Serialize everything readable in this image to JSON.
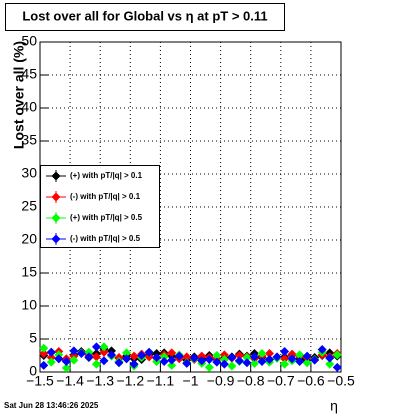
{
  "chart_data": {
    "type": "scatter",
    "title": "Lost over all for Global vs   η at pT > 0.11",
    "y_label": "Lost over all (%)",
    "x_label": "η",
    "timestamp": "Sat Jun 28 13:46:26 2025",
    "x": [
      -1.4875,
      -1.4625,
      -1.4375,
      -1.4125,
      -1.3875,
      -1.3625,
      -1.3375,
      -1.3125,
      -1.2875,
      -1.2625,
      -1.2375,
      -1.2125,
      -1.1875,
      -1.1625,
      -1.1375,
      -1.1125,
      -1.0875,
      -1.0625,
      -1.0375,
      -1.0125,
      -0.9875,
      -0.9625,
      -0.9375,
      -0.9125,
      -0.8875,
      -0.8625,
      -0.8375,
      -0.8125,
      -0.7875,
      -0.7625,
      -0.7375,
      -0.7125,
      -0.6875,
      -0.6625,
      -0.6375,
      -0.6125,
      -0.5875,
      -0.5625,
      -0.5375,
      -0.5125
    ],
    "series": [
      {
        "name": "(+) with pT/|q| > 0.1",
        "color": "#000000",
        "values": [
          2.5,
          3.0,
          2.0,
          1.8,
          2.6,
          3.1,
          2.2,
          2.8,
          3.5,
          3.2,
          2.1,
          2.4,
          2.0,
          1.9,
          2.6,
          2.8,
          2.9,
          2.4,
          2.2,
          1.8,
          2.3,
          2.0,
          2.5,
          1.9,
          2.1,
          2.3,
          2.7,
          2.4,
          2.8,
          2.2,
          1.9,
          2.1,
          2.3,
          2.6,
          2.0,
          1.8,
          2.2,
          2.5,
          2.9,
          2.4
        ]
      },
      {
        "name": "(-) with pT/|q| > 0.1",
        "color": "#ff0000",
        "values": [
          2.8,
          2.2,
          3.1,
          2.0,
          2.4,
          2.9,
          2.6,
          2.3,
          3.0,
          2.5,
          2.2,
          2.0,
          2.4,
          2.7,
          2.3,
          2.1,
          2.6,
          2.9,
          2.0,
          2.3,
          1.9,
          2.4,
          2.2,
          2.0,
          2.6,
          2.1,
          2.5,
          2.3,
          2.0,
          2.4,
          2.8,
          2.2,
          2.0,
          2.7,
          2.4,
          2.2,
          1.9,
          2.6,
          2.3,
          2.8
        ]
      },
      {
        "name": "(+) with pT/|q| > 0.5",
        "color": "#00ff00",
        "values": [
          3.6,
          1.5,
          2.6,
          0.6,
          1.8,
          2.9,
          3.0,
          1.2,
          3.8,
          2.4,
          1.6,
          2.9,
          0.9,
          2.2,
          3.0,
          1.6,
          2.3,
          1.0,
          2.6,
          1.4,
          2.0,
          1.3,
          0.7,
          2.5,
          1.9,
          0.9,
          1.6,
          2.2,
          1.3,
          2.8,
          1.5,
          2.1,
          1.2,
          1.7,
          2.6,
          1.4,
          1.9,
          3.0,
          1.2,
          2.6
        ]
      },
      {
        "name": "(-) with pT/|q| > 0.5",
        "color": "#0000ff",
        "values": [
          1.0,
          3.0,
          2.0,
          1.6,
          3.2,
          2.8,
          2.3,
          3.8,
          1.7,
          2.6,
          1.4,
          2.0,
          1.2,
          2.5,
          3.0,
          2.2,
          1.6,
          1.8,
          2.4,
          1.3,
          2.1,
          1.7,
          1.9,
          1.5,
          1.2,
          2.2,
          1.7,
          1.4,
          2.3,
          1.6,
          1.9,
          2.3,
          3.1,
          2.0,
          1.6,
          2.4,
          1.8,
          3.4,
          2.1,
          0.7
        ]
      }
    ],
    "xlim": [
      -1.5,
      -0.5
    ],
    "xticks": [
      {
        "value": -1.5,
        "label": "−1.5"
      },
      {
        "value": -1.4,
        "label": "−1.4"
      },
      {
        "value": -1.3,
        "label": "−1.3"
      },
      {
        "value": -1.2,
        "label": "−1.2"
      },
      {
        "value": -1.1,
        "label": "−1.1"
      },
      {
        "value": -1,
        "label": "−1"
      },
      {
        "value": -0.9,
        "label": "−0.9"
      },
      {
        "value": -0.8,
        "label": "−0.8"
      },
      {
        "value": -0.7,
        "label": "−0.7"
      },
      {
        "value": -0.6,
        "label": "−0.6"
      },
      {
        "value": -0.5,
        "label": "−0.5"
      }
    ],
    "ylim": [
      0,
      50
    ],
    "yticks": [
      0,
      5,
      10,
      15,
      20,
      25,
      30,
      35,
      40,
      45,
      50
    ],
    "grid": true
  }
}
